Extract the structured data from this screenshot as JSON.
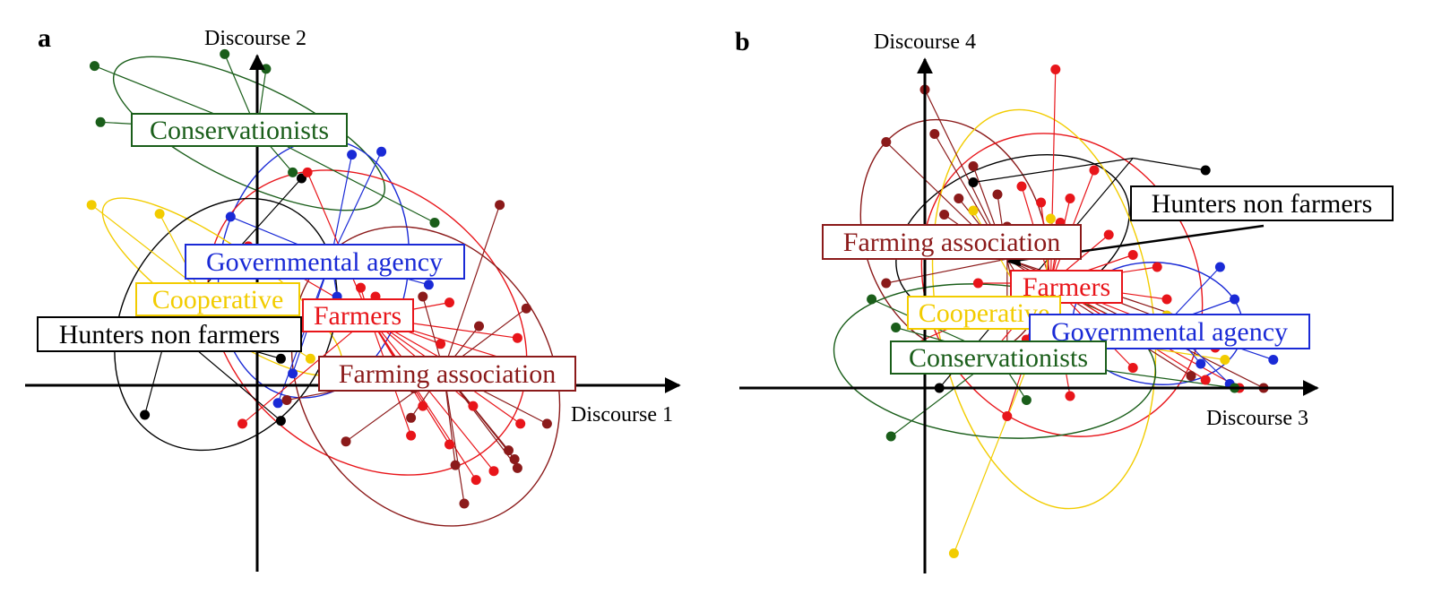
{
  "chart_data": [
    {
      "panel": "a",
      "type": "scatter",
      "xlabel": "Discourse 1",
      "ylabel": "Discourse 2",
      "groups": [
        {
          "name": "Conservationists",
          "color": "#1a5e1a",
          "centroid": [
            0,
            0.86
          ],
          "points": [
            [
              -0.55,
              1.08
            ],
            [
              -0.11,
              1.12
            ],
            [
              0.03,
              1.07
            ],
            [
              -0.53,
              0.89
            ],
            [
              0.12,
              0.72
            ],
            [
              0.6,
              0.55
            ]
          ]
        },
        {
          "name": "Governmental agency",
          "color": "#1a2ad6",
          "centroid": [
            0.25,
            0.43
          ],
          "points": [
            [
              0.32,
              0.78
            ],
            [
              0.42,
              0.79
            ],
            [
              -0.09,
              0.57
            ],
            [
              0.58,
              0.34
            ],
            [
              0.27,
              0.3
            ],
            [
              0.12,
              0.04
            ],
            [
              0.07,
              -0.06
            ]
          ]
        },
        {
          "name": "Cooperative",
          "color": "#f2cc00",
          "centroid": [
            -0.2,
            0.33
          ],
          "points": [
            [
              -0.56,
              0.61
            ],
            [
              -0.33,
              0.58
            ],
            [
              0.18,
              0.09
            ]
          ]
        },
        {
          "name": "Hunters non farmers",
          "color": "#000000",
          "centroid": [
            -0.3,
            0.2
          ],
          "points": [
            [
              -0.38,
              -0.1
            ],
            [
              0.08,
              0.09
            ],
            [
              0.15,
              0.7
            ],
            [
              0.08,
              -0.12
            ]
          ]
        },
        {
          "name": "Farmers",
          "color": "#e8151a",
          "centroid": [
            0.38,
            0.23
          ],
          "points": [
            [
              0.17,
              0.72
            ],
            [
              -0.03,
              0.47
            ],
            [
              0.35,
              0.33
            ],
            [
              0.4,
              0.3
            ],
            [
              0.65,
              0.28
            ],
            [
              0.5,
              0.2
            ],
            [
              0.62,
              0.14
            ],
            [
              0.73,
              0.03
            ],
            [
              0.88,
              0.16
            ],
            [
              0.9,
              0.07
            ],
            [
              0.73,
              -0.07
            ],
            [
              0.56,
              -0.07
            ],
            [
              0.52,
              -0.17
            ],
            [
              0.89,
              -0.13
            ],
            [
              0.65,
              -0.2
            ],
            [
              0.8,
              -0.29
            ],
            [
              0.74,
              -0.32
            ],
            [
              -0.05,
              -0.13
            ]
          ]
        },
        {
          "name": "Farming association",
          "color": "#8b1a1a",
          "centroid": [
            0.63,
            0.05
          ],
          "points": [
            [
              0.82,
              0.61
            ],
            [
              0.56,
              0.3
            ],
            [
              0.91,
              0.26
            ],
            [
              0.75,
              0.2
            ],
            [
              0.65,
              0.03
            ],
            [
              0.53,
              -0.01
            ],
            [
              0.52,
              -0.11
            ],
            [
              0.98,
              -0.13
            ],
            [
              0.3,
              -0.19
            ],
            [
              0.87,
              -0.25
            ],
            [
              0.67,
              -0.27
            ],
            [
              0.7,
              -0.4
            ],
            [
              0.85,
              -0.22
            ],
            [
              0.88,
              -0.28
            ],
            [
              0.1,
              -0.05
            ]
          ]
        }
      ]
    },
    {
      "panel": "b",
      "type": "scatter",
      "xlabel": "Discourse 3",
      "ylabel": "Discourse 4",
      "groups": [
        {
          "name": "Farming association",
          "color": "#8b1a1a",
          "centroid": [
            0.17,
            0.32
          ],
          "points": [
            [
              0,
              0.74
            ],
            [
              0.02,
              0.63
            ],
            [
              -0.08,
              0.61
            ],
            [
              0.1,
              0.55
            ],
            [
              0.15,
              0.48
            ],
            [
              0.07,
              0.47
            ],
            [
              0.04,
              0.43
            ],
            [
              0.17,
              0.4
            ],
            [
              0.2,
              0.35
            ],
            [
              -0.08,
              0.26
            ],
            [
              0.19,
              0.2
            ],
            [
              0.25,
              0.16
            ],
            [
              0.17,
              0.1
            ],
            [
              0.62,
              0.14
            ],
            [
              0.7,
              0
            ],
            [
              0.55,
              0.03
            ],
            [
              0.6,
              0.12
            ]
          ]
        },
        {
          "name": "Hunters non farmers",
          "color": "#000000",
          "centroid": [
            0.43,
            0.57
          ],
          "points": [
            [
              0.58,
              0.54
            ],
            [
              0.1,
              0.51
            ],
            [
              0.03,
              0
            ]
          ]
        },
        {
          "name": "Farmers",
          "color": "#e8151a",
          "centroid": [
            0.26,
            0.26
          ],
          "points": [
            [
              0.27,
              0.79
            ],
            [
              0.35,
              0.54
            ],
            [
              0.2,
              0.5
            ],
            [
              0.24,
              0.46
            ],
            [
              0.3,
              0.47
            ],
            [
              0.28,
              0.41
            ],
            [
              0.38,
              0.38
            ],
            [
              0.43,
              0.33
            ],
            [
              0.48,
              0.3
            ],
            [
              0.5,
              0.22
            ],
            [
              0.21,
              0.12
            ],
            [
              0.11,
              0.26
            ],
            [
              0.25,
              0.22
            ],
            [
              0.23,
              0.12
            ],
            [
              0.42,
              0.14
            ],
            [
              0.43,
              0.05
            ],
            [
              0.14,
              0.09
            ],
            [
              0.3,
              -0.02
            ],
            [
              0.17,
              -0.07
            ],
            [
              -0.04,
              0.1
            ],
            [
              0.6,
              0.1
            ],
            [
              0.58,
              0.02
            ],
            [
              0.65,
              0
            ]
          ]
        },
        {
          "name": "Cooperative",
          "color": "#f2cc00",
          "centroid": [
            0.24,
            0.14
          ],
          "points": [
            [
              0.1,
              0.44
            ],
            [
              0.26,
              0.42
            ],
            [
              0.5,
              0.18
            ],
            [
              0.62,
              0.15
            ],
            [
              0.62,
              0.07
            ],
            [
              0.33,
              0.08
            ],
            [
              0.06,
              -0.41
            ]
          ]
        },
        {
          "name": "Governmental agency",
          "color": "#1a2ad6",
          "centroid": [
            0.5,
            0.16
          ],
          "points": [
            [
              0.61,
              0.3
            ],
            [
              0.64,
              0.22
            ],
            [
              0.57,
              0.06
            ],
            [
              0.63,
              0.01
            ],
            [
              0.72,
              0.07
            ],
            [
              0.6,
              0.14
            ],
            [
              0.68,
              0.14
            ]
          ]
        },
        {
          "name": "Conservationists",
          "color": "#1a5e1a",
          "centroid": [
            0.15,
            0.08
          ],
          "points": [
            [
              -0.11,
              0.22
            ],
            [
              -0.06,
              0.15
            ],
            [
              -0.07,
              -0.12
            ],
            [
              0.21,
              -0.03
            ],
            [
              0.64,
              0
            ]
          ]
        }
      ]
    }
  ],
  "figure": {
    "panel_letters": [
      "a",
      "b"
    ],
    "panels": [
      {
        "letter": "a",
        "axis_x": "Discourse 1",
        "axis_y": "Discourse 2",
        "labels": [
          "Conservationists",
          "Governmental agency",
          "Cooperative",
          "Farmers",
          "Hunters non farmers",
          "Farming association"
        ]
      },
      {
        "letter": "b",
        "axis_x": "Discourse 3",
        "axis_y": "Discourse 4",
        "labels": [
          "Hunters non farmers",
          "Farming association",
          "Farmers",
          "Cooperative",
          "Governmental agency",
          "Conservationists"
        ]
      }
    ]
  }
}
